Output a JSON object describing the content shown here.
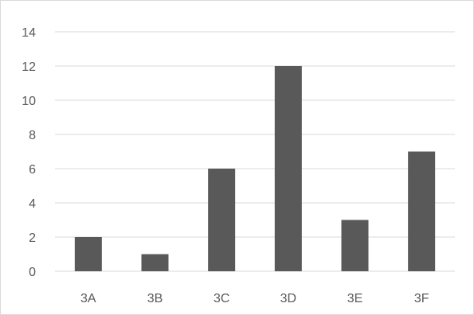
{
  "chart_data": {
    "type": "bar",
    "title": "",
    "xlabel": "",
    "ylabel": "",
    "categories": [
      "3A",
      "3B",
      "3C",
      "3D",
      "3E",
      "3F"
    ],
    "values": [
      2,
      1,
      6,
      12,
      3,
      7
    ],
    "ylim": [
      0,
      14
    ],
    "yticks": [
      0,
      2,
      4,
      6,
      8,
      10,
      12,
      14
    ],
    "grid": true,
    "legend": "none",
    "colors": {
      "bar": "#595959",
      "grid": "#d9d9d9",
      "text": "#595959"
    }
  }
}
